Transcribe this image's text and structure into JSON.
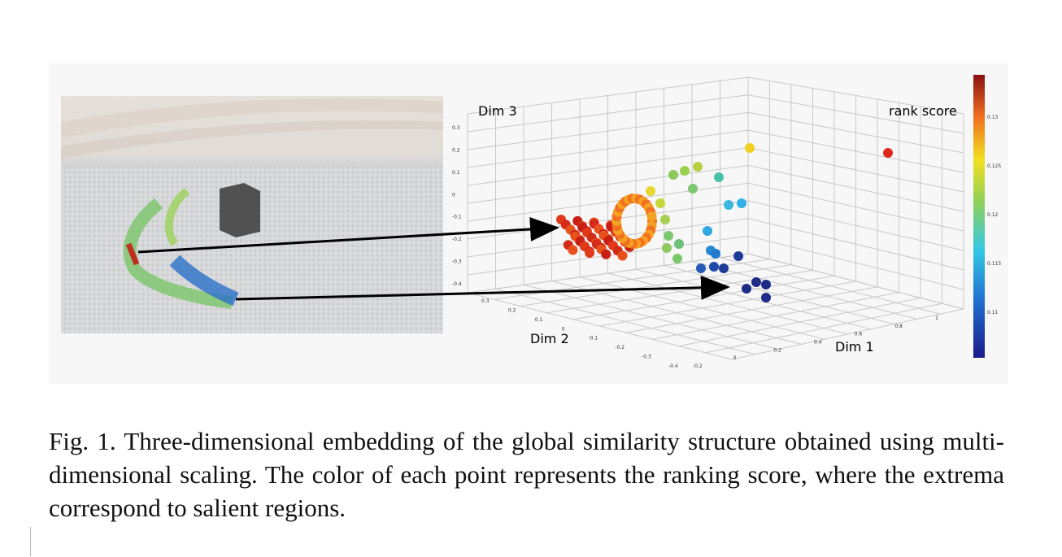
{
  "figure": {
    "plot": {
      "z_label": "Dim 3",
      "y_label": "Dim 2",
      "x_label": "Dim 1",
      "colorbar_label": "rank score",
      "z_ticks": [
        "0.3",
        "0.2",
        "0.1",
        "0",
        "-0.1",
        "-0.2",
        "-0.3",
        "-0.4"
      ],
      "y_ticks": [
        "0.3",
        "0.2",
        "0.1",
        "0",
        "-0.1",
        "-0.2",
        "-0.3",
        "-0.4"
      ],
      "x_ticks": [
        "-0.2",
        "0",
        "0.2",
        "0.4",
        "0.6",
        "0.8",
        "1"
      ],
      "colorbar_ticks": [
        "0.13",
        "0.125",
        "0.12",
        "0.115",
        "0.11"
      ]
    }
  },
  "caption": "Fig. 1. Three-dimensional embedding of the global similarity structure obtained using multi-dimensional scaling. The color of each point represents the ranking score, where the extrema correspond to salient regions."
}
